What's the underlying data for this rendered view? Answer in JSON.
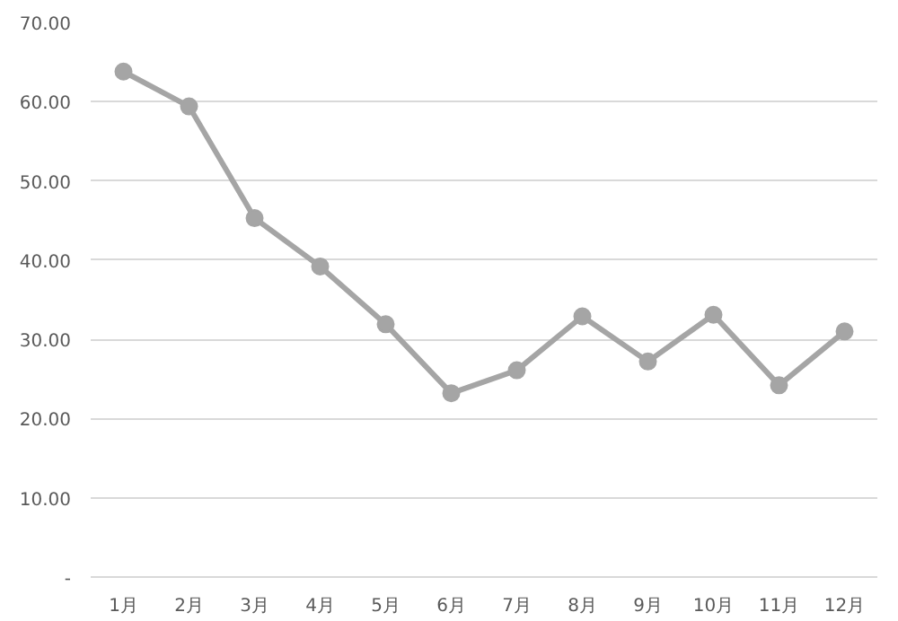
{
  "chart_data": {
    "type": "line",
    "categories": [
      "1月",
      "2月",
      "3月",
      "4月",
      "5月",
      "6月",
      "7月",
      "8月",
      "9月",
      "10月",
      "11月",
      "12月"
    ],
    "series": [
      {
        "color": "#a5a5a5",
        "values": [
          63.8,
          59.4,
          45.3,
          39.2,
          31.9,
          23.2,
          26.1,
          32.9,
          27.2,
          33.1,
          24.2,
          31.0
        ]
      }
    ],
    "ylim": [
      0,
      70
    ],
    "yticks": [
      {
        "value": 0,
        "label": "-"
      },
      {
        "value": 10,
        "label": "10.00"
      },
      {
        "value": 20,
        "label": "20.00"
      },
      {
        "value": 30,
        "label": "30.00"
      },
      {
        "value": 40,
        "label": "40.00"
      },
      {
        "value": 50,
        "label": "50.00"
      },
      {
        "value": 60,
        "label": "60.00"
      },
      {
        "value": 70,
        "label": "70.00"
      }
    ],
    "grid": "y",
    "marker": "circle",
    "line_style": "solid"
  }
}
